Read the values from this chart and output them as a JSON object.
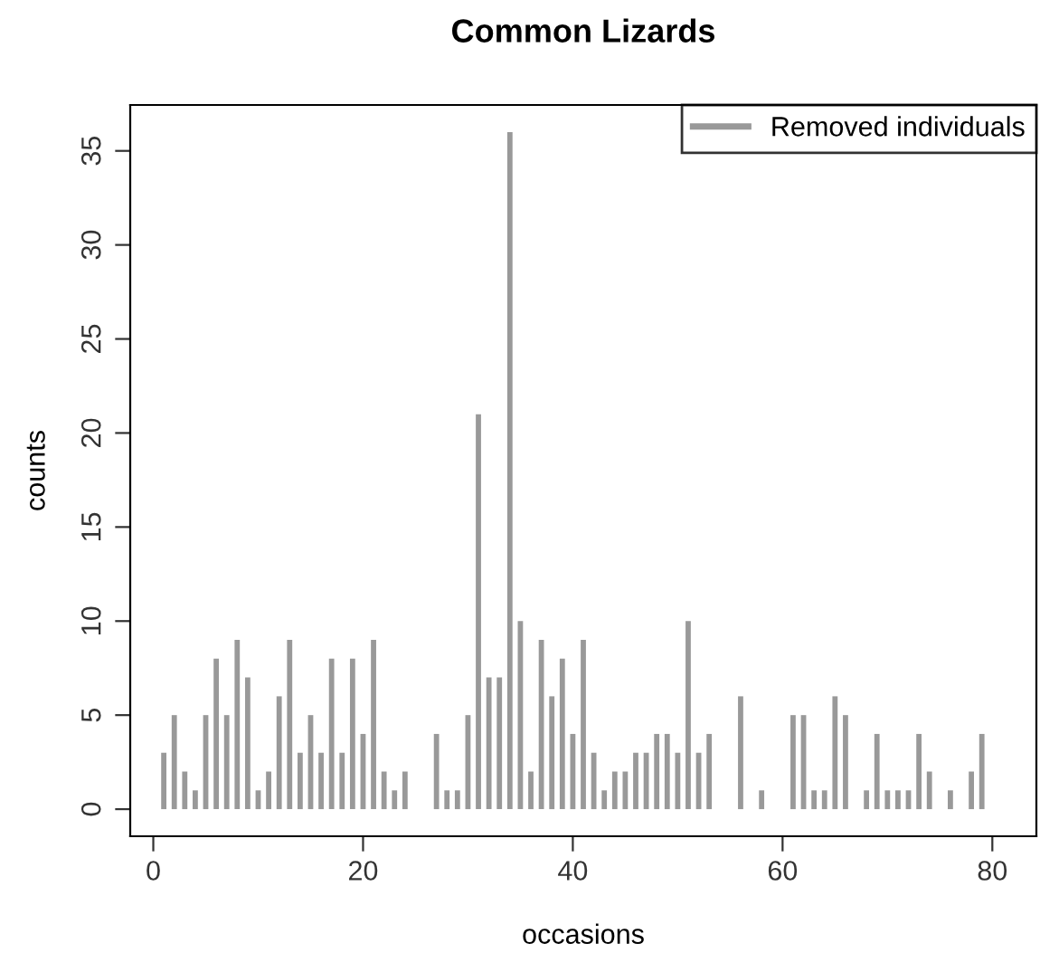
{
  "chart_data": {
    "type": "bar",
    "title": "Common Lizards",
    "xlabel": "occasions",
    "ylabel": "counts",
    "x": [
      1,
      2,
      3,
      4,
      5,
      6,
      7,
      8,
      9,
      10,
      11,
      12,
      13,
      14,
      15,
      16,
      17,
      18,
      19,
      20,
      21,
      22,
      23,
      24,
      25,
      26,
      27,
      28,
      29,
      30,
      31,
      32,
      33,
      34,
      35,
      36,
      37,
      38,
      39,
      40,
      41,
      42,
      43,
      44,
      45,
      46,
      47,
      48,
      49,
      50,
      51,
      52,
      53,
      54,
      55,
      56,
      57,
      58,
      59,
      60,
      61,
      62,
      63,
      64,
      65,
      66,
      67,
      68,
      69,
      70,
      71,
      72,
      73,
      74,
      75,
      76,
      77,
      78,
      79,
      80,
      81
    ],
    "series": [
      {
        "name": "Removed individuals",
        "color": "#999999",
        "values": [
          3,
          5,
          2,
          1,
          5,
          8,
          5,
          9,
          7,
          1,
          2,
          6,
          9,
          3,
          5,
          3,
          8,
          3,
          8,
          4,
          9,
          2,
          1,
          2,
          0,
          0,
          4,
          1,
          1,
          5,
          21,
          7,
          7,
          36,
          10,
          2,
          9,
          6,
          8,
          4,
          9,
          3,
          1,
          2,
          2,
          3,
          3,
          4,
          4,
          3,
          10,
          3,
          4,
          0,
          0,
          6,
          0,
          1,
          0,
          0,
          5,
          5,
          1,
          1,
          6,
          5,
          0,
          1,
          4,
          1,
          1,
          1,
          4,
          2,
          0,
          1,
          0,
          2,
          4,
          0,
          0
        ]
      }
    ],
    "xlim": [
      -2.2,
      84.2
    ],
    "ylim": [
      -1.44,
      37.44
    ],
    "xticks": [
      0,
      20,
      40,
      60,
      80
    ],
    "yticks": [
      0,
      5,
      10,
      15,
      20,
      25,
      30,
      35
    ],
    "grid": false,
    "legend": "top right"
  }
}
